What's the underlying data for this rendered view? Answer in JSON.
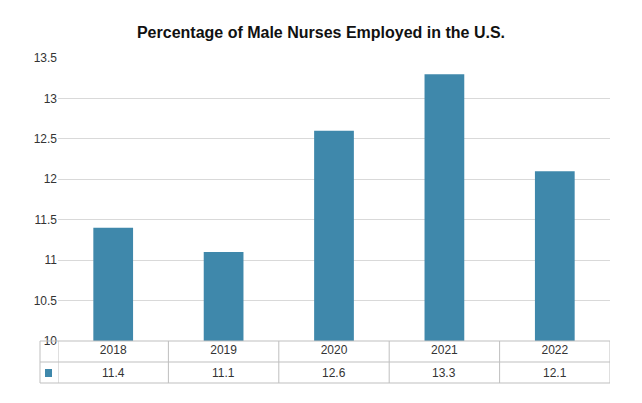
{
  "chart_data": {
    "type": "bar",
    "title": "Percentage of Male Nurses Employed in the U.S.",
    "categories": [
      "2018",
      "2019",
      "2020",
      "2021",
      "2022"
    ],
    "values": [
      11.4,
      11.1,
      12.6,
      13.3,
      12.1
    ],
    "color": "#3f88ab",
    "ylim": [
      10,
      13.5
    ],
    "yticks": [
      10,
      10.5,
      11,
      11.5,
      12,
      12.5,
      13,
      13.5
    ],
    "grid": true
  }
}
